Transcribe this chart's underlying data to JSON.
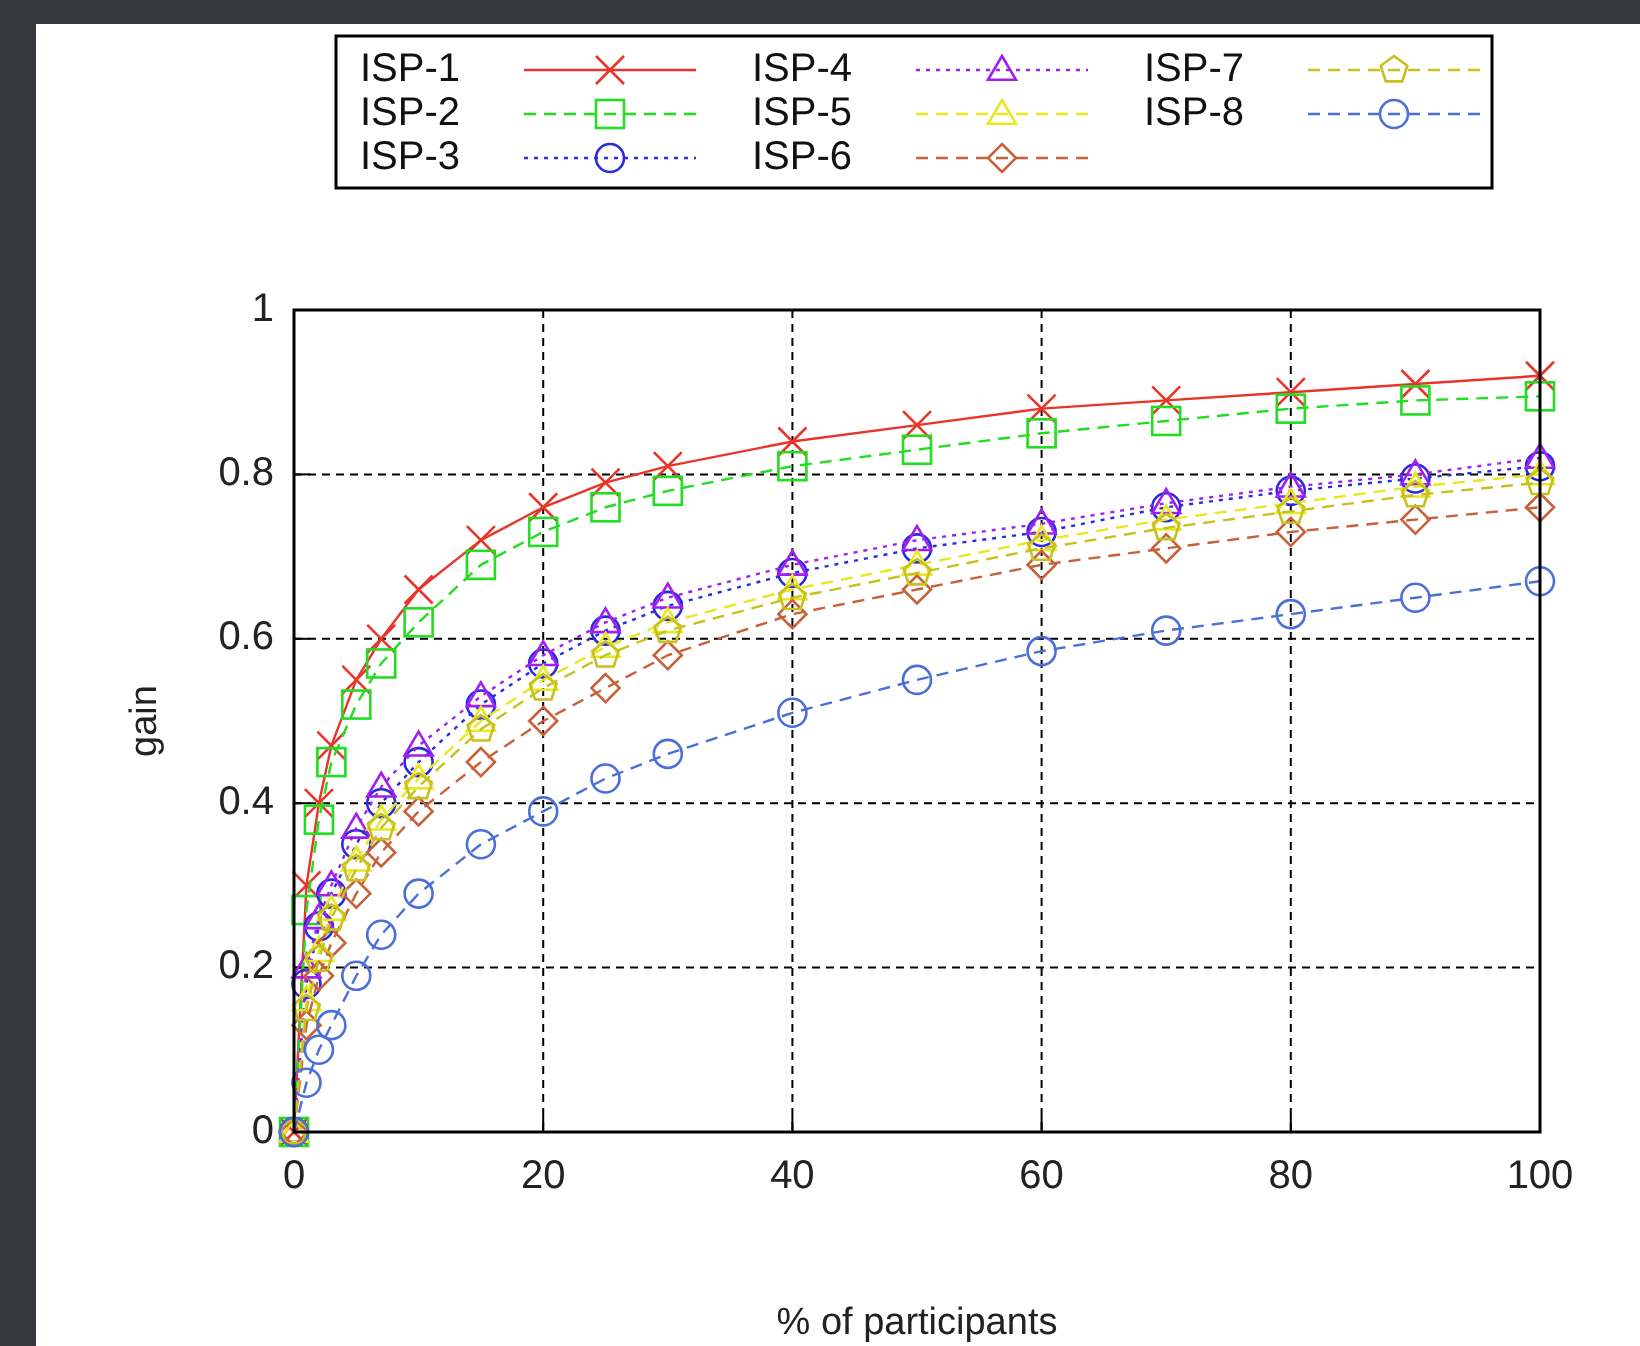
{
  "chart_data": {
    "type": "line",
    "xlabel": "% of participants",
    "ylabel": "gain",
    "xlim": [
      0,
      100
    ],
    "ylim": [
      0,
      1
    ],
    "xticks": [
      0,
      20,
      40,
      60,
      80,
      100
    ],
    "yticks": [
      0,
      0.2,
      0.4,
      0.6,
      0.8,
      1
    ],
    "grid": true,
    "legend": "top",
    "x": [
      0,
      1,
      2,
      3,
      5,
      7,
      10,
      15,
      20,
      25,
      30,
      40,
      50,
      60,
      70,
      80,
      90,
      100
    ],
    "series": [
      {
        "name": "ISP-1",
        "color": "#e8352a",
        "marker": "cross",
        "line_style": "solid",
        "values": [
          0,
          0.3,
          0.4,
          0.47,
          0.55,
          0.6,
          0.66,
          0.72,
          0.76,
          0.79,
          0.81,
          0.84,
          0.86,
          0.88,
          0.89,
          0.9,
          0.91,
          0.92
        ]
      },
      {
        "name": "ISP-2",
        "color": "#22dd22",
        "marker": "square",
        "line_style": "dashed",
        "values": [
          0,
          0.27,
          0.38,
          0.45,
          0.52,
          0.57,
          0.62,
          0.69,
          0.73,
          0.76,
          0.78,
          0.81,
          0.83,
          0.85,
          0.865,
          0.88,
          0.89,
          0.895
        ]
      },
      {
        "name": "ISP-3",
        "color": "#2a2ae0",
        "marker": "circle",
        "line_style": "dotted",
        "values": [
          0,
          0.18,
          0.25,
          0.29,
          0.35,
          0.4,
          0.45,
          0.52,
          0.57,
          0.61,
          0.64,
          0.68,
          0.71,
          0.73,
          0.76,
          0.78,
          0.795,
          0.81
        ]
      },
      {
        "name": "ISP-4",
        "color": "#a020f0",
        "marker": "triangle",
        "line_style": "dotted",
        "values": [
          0,
          0.2,
          0.26,
          0.3,
          0.37,
          0.42,
          0.47,
          0.53,
          0.58,
          0.62,
          0.65,
          0.69,
          0.72,
          0.74,
          0.765,
          0.785,
          0.8,
          0.82
        ]
      },
      {
        "name": "ISP-5",
        "color": "#e8e820",
        "marker": "triangle",
        "line_style": "dashed",
        "values": [
          0,
          0.16,
          0.22,
          0.27,
          0.33,
          0.38,
          0.43,
          0.5,
          0.55,
          0.59,
          0.62,
          0.66,
          0.69,
          0.72,
          0.745,
          0.765,
          0.785,
          0.8
        ]
      },
      {
        "name": "ISP-6",
        "color": "#c8603a",
        "marker": "diamond",
        "line_style": "dashed",
        "values": [
          0,
          0.13,
          0.19,
          0.23,
          0.29,
          0.34,
          0.39,
          0.45,
          0.5,
          0.54,
          0.58,
          0.63,
          0.66,
          0.69,
          0.71,
          0.73,
          0.745,
          0.76
        ]
      },
      {
        "name": "ISP-7",
        "color": "#c8c020",
        "marker": "star",
        "line_style": "dashed",
        "values": [
          0,
          0.15,
          0.21,
          0.26,
          0.32,
          0.37,
          0.42,
          0.49,
          0.54,
          0.58,
          0.61,
          0.65,
          0.68,
          0.71,
          0.735,
          0.755,
          0.775,
          0.79
        ]
      },
      {
        "name": "ISP-8",
        "color": "#4a6fd8",
        "marker": "circle",
        "line_style": "dashed",
        "values": [
          0,
          0.06,
          0.1,
          0.13,
          0.19,
          0.24,
          0.29,
          0.35,
          0.39,
          0.43,
          0.46,
          0.51,
          0.55,
          0.585,
          0.61,
          0.63,
          0.65,
          0.67
        ]
      }
    ]
  }
}
